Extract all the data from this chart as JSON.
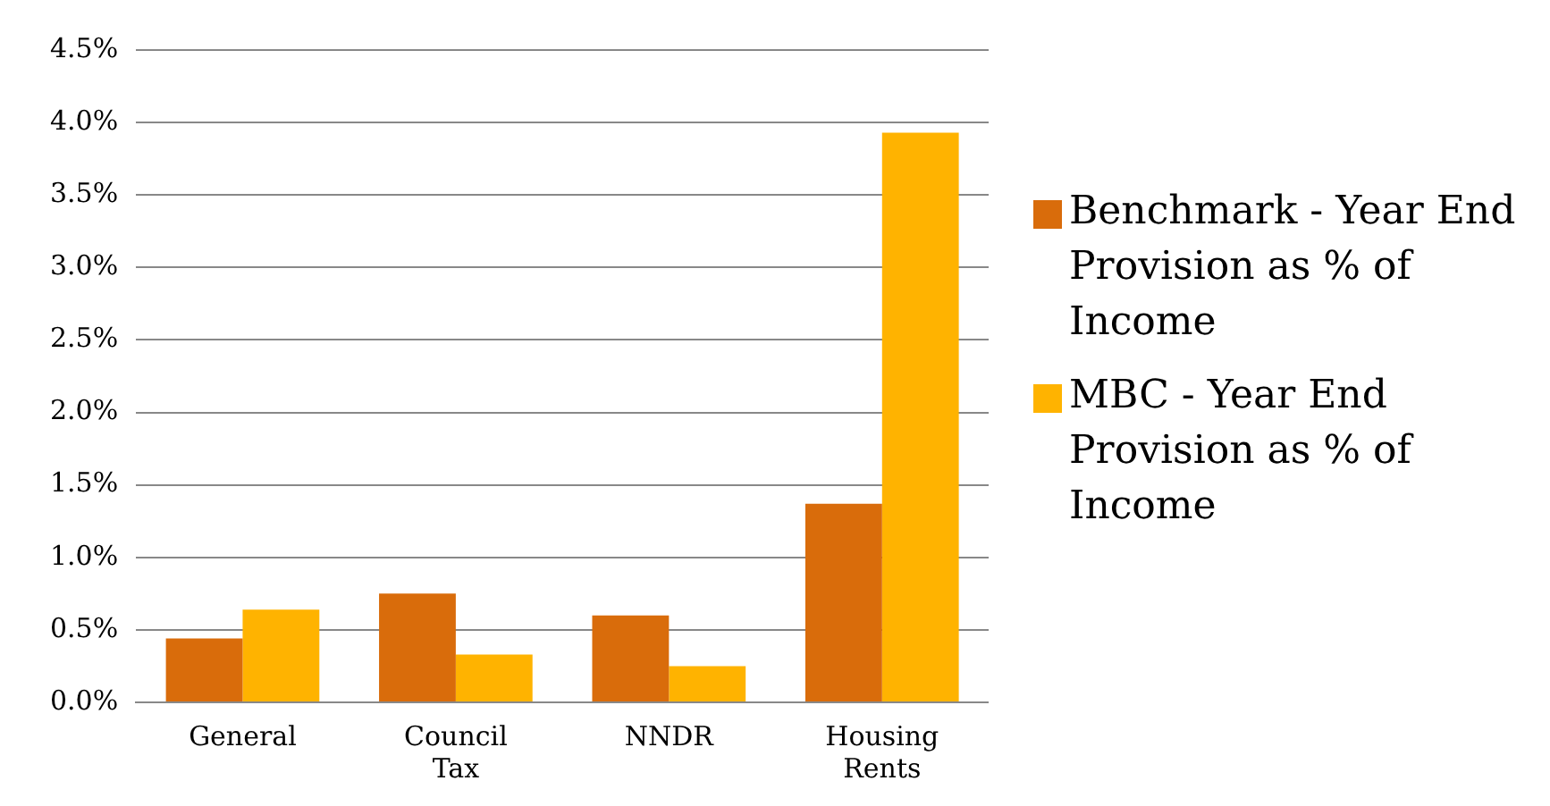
{
  "chart_data": {
    "type": "bar",
    "categories": [
      "General",
      "Council\nTax",
      "NNDR",
      "Housing\nRents"
    ],
    "series": [
      {
        "name": "Benchmark - Year End Provision as % of Income",
        "color": "#d96c0b",
        "values": [
          0.44,
          0.75,
          0.6,
          1.37
        ]
      },
      {
        "name": "MBC - Year End Provision as % of Income",
        "color": "#ffb300",
        "values": [
          0.64,
          0.33,
          0.25,
          3.93
        ]
      }
    ],
    "ylim": [
      0,
      4.5
    ],
    "yticks": [
      {
        "value": 0,
        "label": "0.0%"
      },
      {
        "value": 0.5,
        "label": "0.5%"
      },
      {
        "value": 1,
        "label": "1.0%"
      },
      {
        "value": 1.5,
        "label": "1.5%"
      },
      {
        "value": 2,
        "label": "2.0%"
      },
      {
        "value": 2.5,
        "label": "2.5%"
      },
      {
        "value": 3,
        "label": "3.0%"
      },
      {
        "value": 3.5,
        "label": "3.5%"
      },
      {
        "value": 4,
        "label": "4.0%"
      },
      {
        "value": 4.5,
        "label": "4.5%"
      }
    ],
    "grid": "y",
    "legend": "right"
  }
}
